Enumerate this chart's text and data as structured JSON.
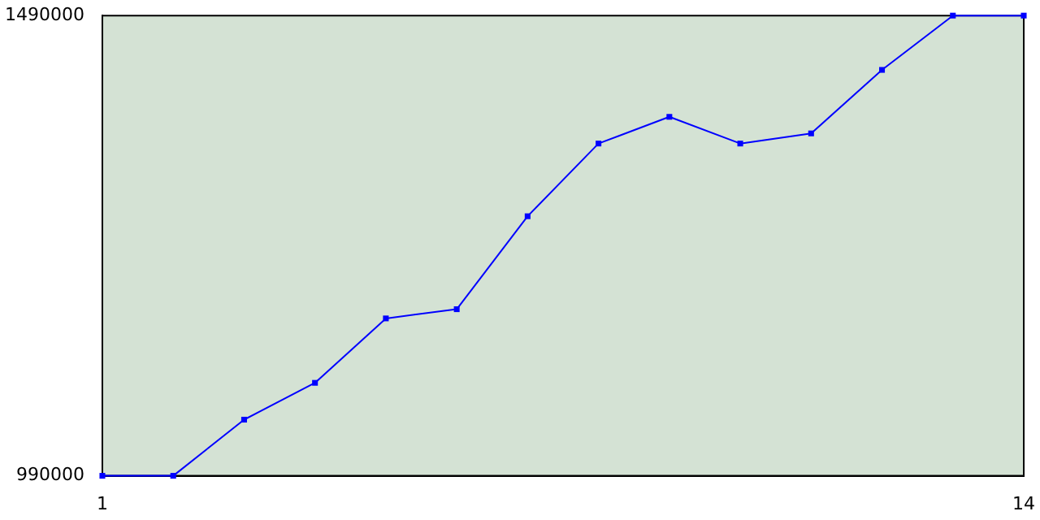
{
  "chart_data": {
    "type": "line",
    "x": [
      1,
      2,
      3,
      4,
      5,
      6,
      7,
      8,
      9,
      10,
      11,
      12,
      13,
      14
    ],
    "series": [
      {
        "color": "#0000ff",
        "values": [
          990000,
          990000,
          1051000,
          1091000,
          1161000,
          1171000,
          1272000,
          1351000,
          1380000,
          1351000,
          1362000,
          1431000,
          1490000,
          1490000
        ]
      }
    ],
    "xlim": [
      1,
      14
    ],
    "xticks": [
      1,
      14
    ],
    "ylim": [
      990000,
      1490000
    ],
    "yticks": [
      990000,
      1490000
    ],
    "grid": false,
    "legend": false,
    "marker": "square",
    "line_style": "solid"
  }
}
